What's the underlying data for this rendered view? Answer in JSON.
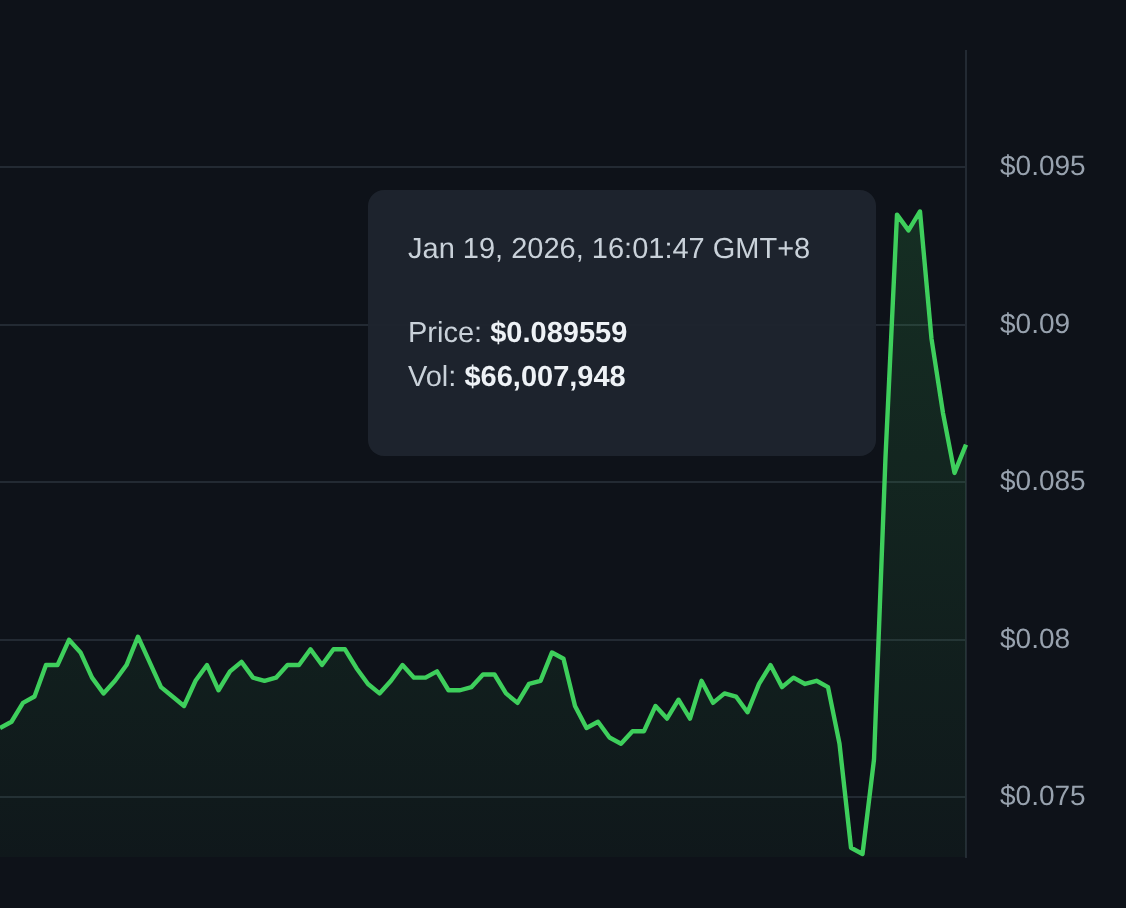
{
  "chart_data": {
    "type": "area",
    "categories": [
      null,
      null,
      null,
      null,
      null,
      null,
      null,
      null,
      null,
      null,
      null,
      null,
      null,
      null,
      null,
      null,
      null,
      null,
      null,
      null,
      null,
      null,
      null,
      null,
      null,
      null,
      null,
      null,
      null,
      null,
      null,
      null,
      null,
      null,
      null,
      null,
      null,
      null,
      null,
      null,
      null,
      null,
      null,
      null,
      null,
      null,
      null,
      null,
      null,
      null,
      null,
      null,
      null,
      null,
      null,
      null,
      null,
      null,
      null,
      null,
      null,
      null,
      null,
      null,
      null,
      null,
      null,
      null,
      null,
      null,
      null,
      null,
      null,
      null,
      null,
      null,
      null,
      null,
      null,
      null,
      null,
      null,
      null,
      null,
      null
    ],
    "series": [
      {
        "color": "#3ecf5c",
        "values": [
          0.0772,
          0.0774,
          0.078,
          0.0782,
          0.0792,
          0.0792,
          0.08,
          0.0796,
          0.0788,
          0.0783,
          0.0787,
          0.0792,
          0.0801,
          0.0793,
          0.0785,
          0.0782,
          0.0779,
          0.0787,
          0.0792,
          0.0784,
          0.079,
          0.0793,
          0.0788,
          0.0787,
          0.0788,
          0.0792,
          0.0792,
          0.0797,
          0.0792,
          0.0797,
          0.0797,
          0.0791,
          0.0786,
          0.0783,
          0.0787,
          0.0792,
          0.0788,
          0.0788,
          0.079,
          0.0784,
          0.0784,
          0.0785,
          0.0789,
          0.0789,
          0.0783,
          0.078,
          0.0786,
          0.0787,
          0.0796,
          0.0794,
          0.0779,
          0.0772,
          0.0774,
          0.0769,
          0.0767,
          0.0771,
          0.0771,
          0.0779,
          0.0775,
          0.0781,
          0.0775,
          0.0787,
          0.078,
          0.0783,
          0.0782,
          0.0777,
          0.0786,
          0.0792,
          0.0785,
          0.0788,
          0.0786,
          0.0787,
          0.0785,
          0.0767,
          0.0734,
          0.0732,
          0.0762,
          0.0858,
          0.0935,
          0.093,
          0.0936,
          0.089559,
          0.0872,
          0.0853,
          0.0862
        ]
      }
    ],
    "ylim": [
      0.0731,
      0.0987
    ],
    "yticks": [
      {
        "value": 0.075,
        "label": "$0.075"
      },
      {
        "value": 0.08,
        "label": "$0.08"
      },
      {
        "value": 0.085,
        "label": "$0.085"
      },
      {
        "value": 0.09,
        "label": "$0.09"
      },
      {
        "value": 0.095,
        "label": "$0.095"
      }
    ],
    "grid": "y",
    "legend": false,
    "marker": "none",
    "line_style": "solid",
    "annotations": [
      "Jan 19, 2026, 16:01:47 GMT+8",
      "Price: $0.089559",
      "Vol: $66,007,948"
    ]
  }
}
